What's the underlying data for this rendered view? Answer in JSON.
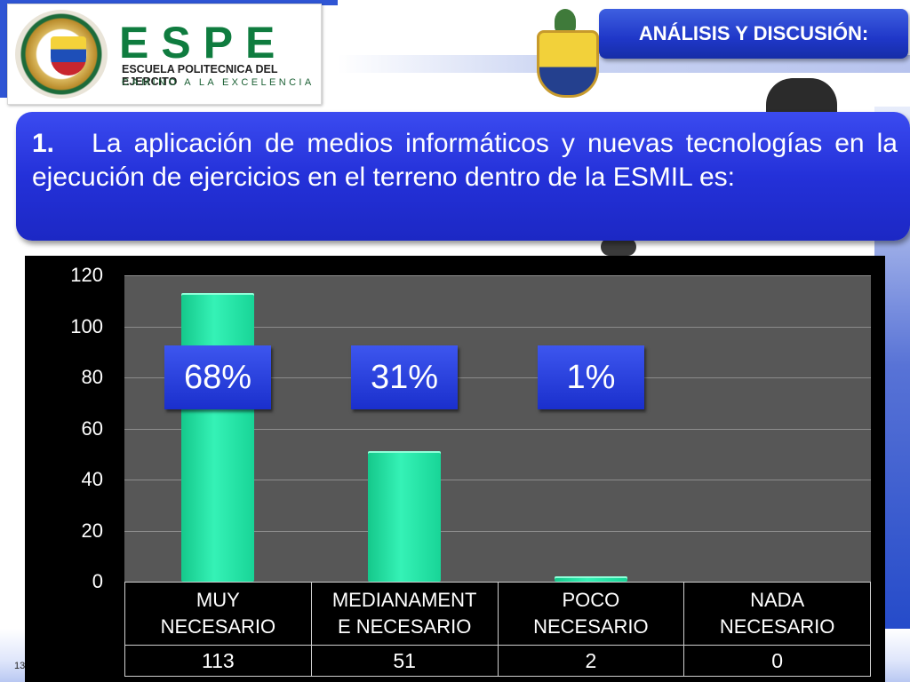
{
  "header": {
    "brand_name": "ESPE",
    "brand_subtitle": "ESCUELA POLITECNICA DEL EJERCITO",
    "brand_motto": "CAMINO A LA EXCELENCIA",
    "section_title": "ANÁLISIS Y DISCUSIÓN:"
  },
  "question": {
    "number": "1.",
    "text": "La aplicación de medios informáticos y nuevas tecnologías  en la ejecución de ejercicios en el terreno dentro de la ESMIL es:"
  },
  "chart_data": {
    "type": "bar",
    "categories": [
      "MUY NECESARIO",
      "MEDIANAMENTE NECESARIO",
      "POCO NECESARIO",
      "NADA NECESARIO"
    ],
    "category_display": [
      [
        "MUY",
        "NECESARIO"
      ],
      [
        "MEDIANAMENT",
        "E NECESARIO"
      ],
      [
        "POCO",
        "NECESARIO"
      ],
      [
        "NADA",
        "NECESARIO"
      ]
    ],
    "values": [
      113,
      51,
      2,
      0
    ],
    "value_labels": [
      "113",
      "51",
      "2",
      "0"
    ],
    "percent_labels": [
      "68%",
      "31%",
      "1%"
    ],
    "y_ticks": [
      0,
      20,
      40,
      60,
      80,
      100,
      120
    ],
    "ylim": [
      0,
      120
    ],
    "grid": true,
    "bar_color": "#1fe3a3",
    "background_color": "#575757"
  },
  "footer": {
    "slide_number": "13"
  }
}
